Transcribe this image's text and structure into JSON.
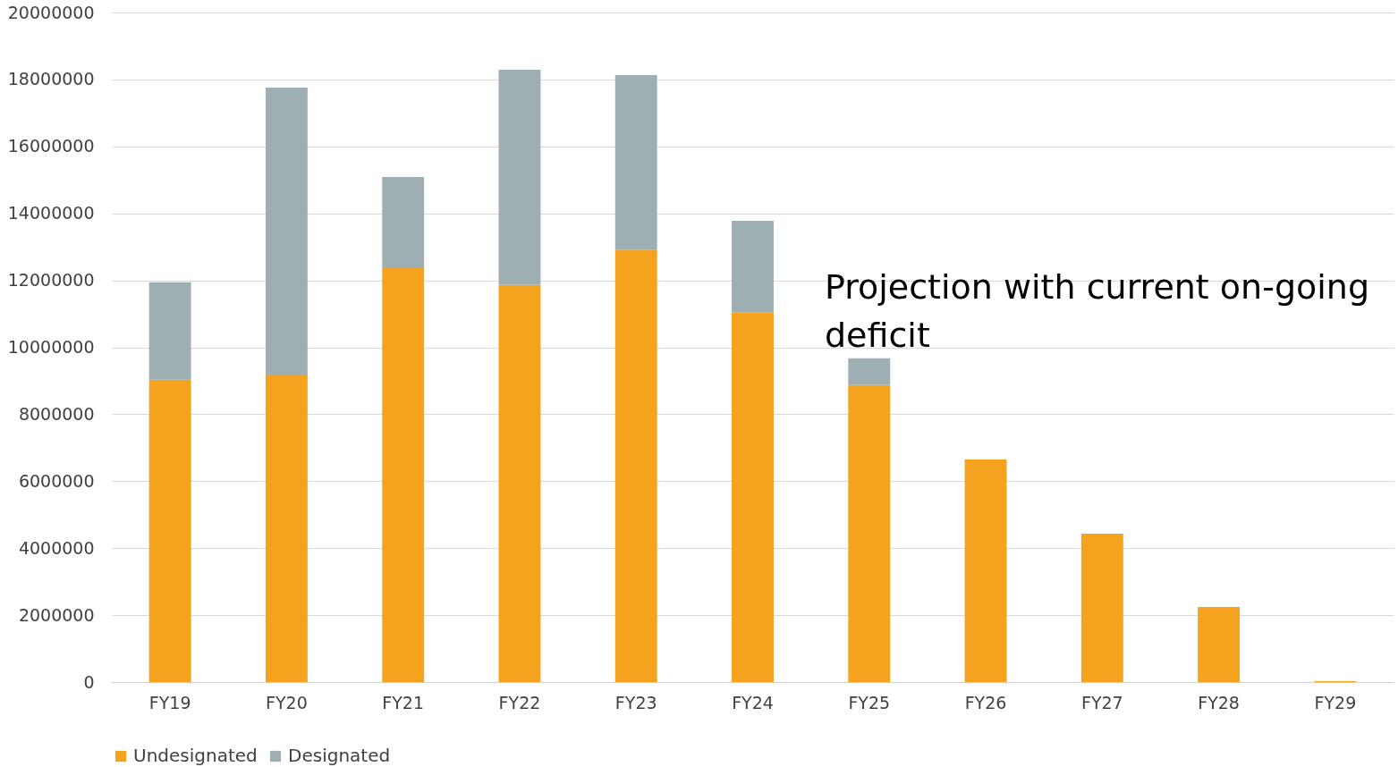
{
  "chart_data": {
    "type": "bar",
    "stacked": true,
    "categories": [
      "FY19",
      "FY20",
      "FY21",
      "FY22",
      "FY23",
      "FY24",
      "FY25",
      "FY26",
      "FY27",
      "FY28",
      "FY29"
    ],
    "series": [
      {
        "name": "Undesignated",
        "color": "#f5a31f",
        "values": [
          9030000,
          9160000,
          12390000,
          11860000,
          12920000,
          11050000,
          8870000,
          6650000,
          4430000,
          2240000,
          30000
        ]
      },
      {
        "name": "Designated",
        "color": "#9eafb4",
        "values": [
          2910000,
          8600000,
          2700000,
          6430000,
          5210000,
          2730000,
          800000,
          null,
          null,
          null,
          null
        ]
      }
    ],
    "ylim": [
      0,
      20000000
    ],
    "yticks": [
      0,
      2000000,
      4000000,
      6000000,
      8000000,
      10000000,
      12000000,
      14000000,
      16000000,
      18000000,
      20000000
    ],
    "grid": "y",
    "legend": "bottom",
    "annotations": [
      "Projection with current on-going deficit"
    ]
  }
}
